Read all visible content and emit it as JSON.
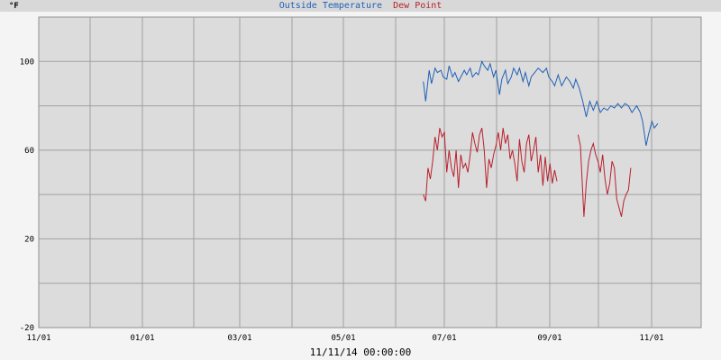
{
  "chart_data": {
    "type": "line",
    "unit_label": "°F",
    "x_tick_labels": [
      "11/01",
      "01/01",
      "03/01",
      "05/01",
      "07/01",
      "09/01",
      "11/01"
    ],
    "y_tick_labels": [
      "-20",
      "20",
      "60",
      "100"
    ],
    "ylim": [
      -20,
      120
    ],
    "grid": true,
    "timestamp": "11/11/14 00:00:00",
    "series": [
      {
        "name": "Outside Temperature",
        "color": "#2060b8",
        "values": [
          [
            32.8,
            91
          ],
          [
            33.0,
            82
          ],
          [
            33.3,
            96
          ],
          [
            33.5,
            90
          ],
          [
            33.8,
            97
          ],
          [
            34.0,
            95
          ],
          [
            34.3,
            96
          ],
          [
            34.5,
            93
          ],
          [
            34.8,
            92
          ],
          [
            35.0,
            98
          ],
          [
            35.3,
            93
          ],
          [
            35.5,
            95
          ],
          [
            35.8,
            91
          ],
          [
            36.0,
            93
          ],
          [
            36.3,
            96
          ],
          [
            36.5,
            94
          ],
          [
            36.8,
            97
          ],
          [
            37.0,
            93
          ],
          [
            37.3,
            95
          ],
          [
            37.5,
            94
          ],
          [
            37.8,
            100
          ],
          [
            38.0,
            98
          ],
          [
            38.3,
            96
          ],
          [
            38.5,
            99
          ],
          [
            38.8,
            93
          ],
          [
            39.0,
            96
          ],
          [
            39.3,
            85
          ],
          [
            39.5,
            92
          ],
          [
            39.8,
            96
          ],
          [
            40.0,
            90
          ],
          [
            40.3,
            93
          ],
          [
            40.5,
            97
          ],
          [
            40.8,
            94
          ],
          [
            41.0,
            97
          ],
          [
            41.3,
            91
          ],
          [
            41.5,
            95
          ],
          [
            41.8,
            89
          ],
          [
            42.0,
            93
          ],
          [
            42.3,
            95
          ],
          [
            42.6,
            97
          ],
          [
            43.0,
            95
          ],
          [
            43.3,
            97
          ],
          [
            43.5,
            93
          ],
          [
            43.8,
            91
          ],
          [
            44.0,
            89
          ],
          [
            44.3,
            94
          ],
          [
            44.6,
            89
          ],
          [
            44.8,
            91
          ],
          [
            45.0,
            93
          ],
          [
            45.3,
            91
          ],
          [
            45.6,
            88
          ],
          [
            45.8,
            92
          ],
          [
            46.1,
            88
          ],
          [
            46.4,
            82
          ],
          [
            46.7,
            75
          ],
          [
            47.0,
            82
          ],
          [
            47.3,
            78
          ],
          [
            47.6,
            82
          ],
          [
            47.9,
            77
          ],
          [
            48.2,
            79
          ],
          [
            48.5,
            78
          ],
          [
            48.8,
            80
          ],
          [
            49.1,
            79
          ],
          [
            49.4,
            81
          ],
          [
            49.7,
            79
          ],
          [
            50.0,
            81
          ],
          [
            50.3,
            80
          ],
          [
            50.6,
            77
          ],
          [
            51.0,
            80
          ],
          [
            51.3,
            77
          ],
          [
            51.5,
            73
          ],
          [
            51.8,
            62
          ],
          [
            52.0,
            67
          ],
          [
            52.3,
            73
          ],
          [
            52.5,
            70
          ],
          [
            52.8,
            72
          ]
        ]
      },
      {
        "name": "Dew Point",
        "color": "#b8202c",
        "values": [
          [
            32.8,
            40
          ],
          [
            33.0,
            37
          ],
          [
            33.2,
            52
          ],
          [
            33.4,
            47
          ],
          [
            33.6,
            55
          ],
          [
            33.8,
            66
          ],
          [
            34.0,
            60
          ],
          [
            34.2,
            70
          ],
          [
            34.4,
            66
          ],
          [
            34.6,
            68
          ],
          [
            34.8,
            50
          ],
          [
            35.0,
            60
          ],
          [
            35.2,
            52
          ],
          [
            35.4,
            48
          ],
          [
            35.6,
            60
          ],
          [
            35.8,
            43
          ],
          [
            36.0,
            58
          ],
          [
            36.2,
            52
          ],
          [
            36.4,
            54
          ],
          [
            36.6,
            50
          ],
          [
            36.8,
            58
          ],
          [
            37.0,
            68
          ],
          [
            37.2,
            63
          ],
          [
            37.4,
            59
          ],
          [
            37.6,
            67
          ],
          [
            37.8,
            70
          ],
          [
            38.0,
            60
          ],
          [
            38.2,
            43
          ],
          [
            38.4,
            56
          ],
          [
            38.6,
            52
          ],
          [
            38.8,
            58
          ],
          [
            39.0,
            62
          ],
          [
            39.2,
            68
          ],
          [
            39.4,
            60
          ],
          [
            39.6,
            70
          ],
          [
            39.8,
            63
          ],
          [
            40.0,
            67
          ],
          [
            40.2,
            56
          ],
          [
            40.4,
            60
          ],
          [
            40.6,
            54
          ],
          [
            40.8,
            46
          ],
          [
            41.0,
            65
          ],
          [
            41.2,
            55
          ],
          [
            41.4,
            50
          ],
          [
            41.6,
            63
          ],
          [
            41.8,
            67
          ],
          [
            42.0,
            55
          ],
          [
            42.2,
            60
          ],
          [
            42.4,
            66
          ],
          [
            42.6,
            50
          ],
          [
            42.8,
            58
          ],
          [
            43.0,
            44
          ],
          [
            43.2,
            57
          ],
          [
            43.4,
            46
          ],
          [
            43.6,
            54
          ],
          [
            43.8,
            45
          ],
          [
            44.0,
            51
          ],
          [
            44.2,
            46
          ],
          [
            46.0,
            67
          ],
          [
            46.2,
            62
          ],
          [
            46.5,
            30
          ],
          [
            46.7,
            45
          ],
          [
            46.9,
            55
          ],
          [
            47.1,
            60
          ],
          [
            47.3,
            63
          ],
          [
            47.5,
            58
          ],
          [
            47.7,
            55
          ],
          [
            47.9,
            50
          ],
          [
            48.1,
            58
          ],
          [
            48.3,
            47
          ],
          [
            48.5,
            40
          ],
          [
            48.7,
            45
          ],
          [
            48.9,
            55
          ],
          [
            49.1,
            52
          ],
          [
            49.3,
            38
          ],
          [
            49.5,
            34
          ],
          [
            49.7,
            30
          ],
          [
            49.9,
            37
          ],
          [
            50.1,
            40
          ],
          [
            50.3,
            42
          ],
          [
            50.5,
            52
          ]
        ]
      }
    ]
  }
}
